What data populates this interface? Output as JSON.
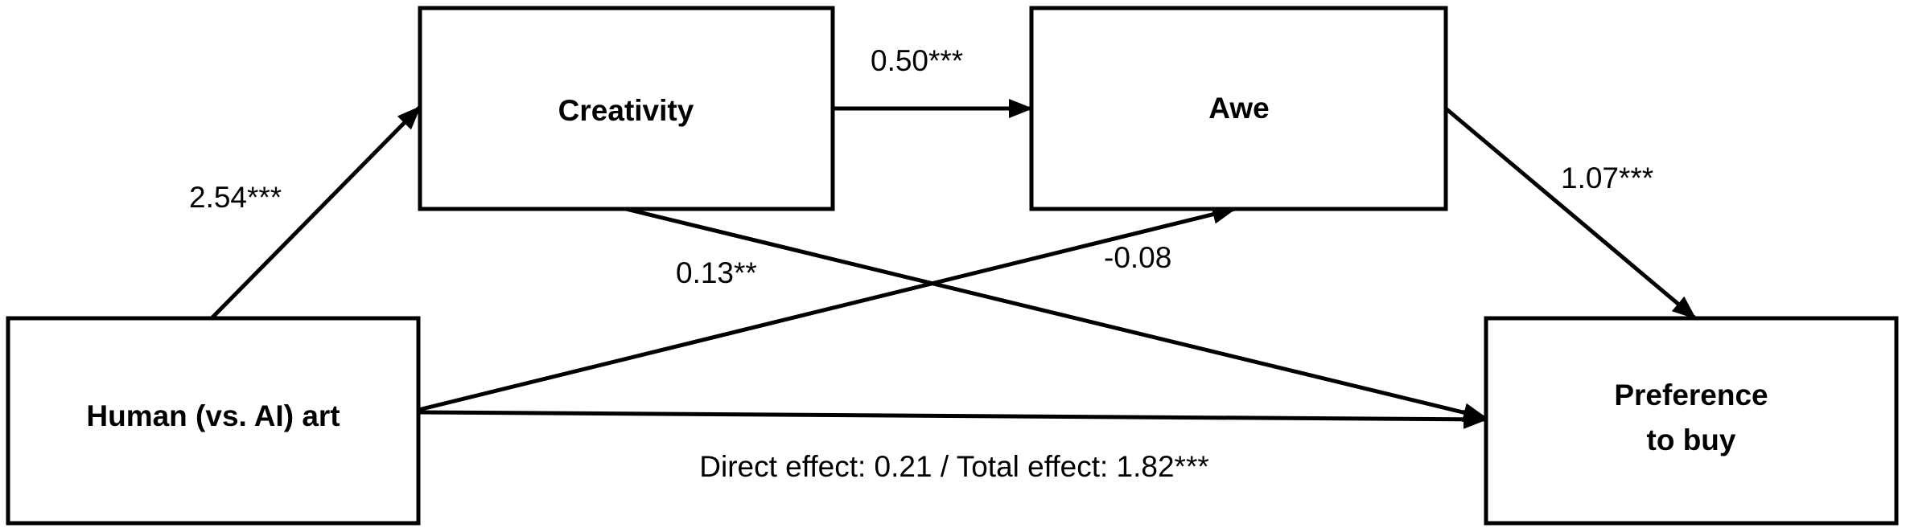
{
  "nodes": {
    "creativity": "Creativity",
    "awe": "Awe",
    "human_art": "Human (vs. AI) art",
    "preference_line1": "Preference",
    "preference_line2": "to buy"
  },
  "paths": {
    "human_to_creativity": "2.54***",
    "creativity_to_awe": "0.50***",
    "awe_to_preference": "1.07***",
    "creativity_to_preference": "0.13**",
    "human_to_awe": "-0.08",
    "direct_total": "Direct effect: 0.21 / Total effect: 1.82***"
  },
  "colors": {
    "stroke": "#000000",
    "background": "#ffffff"
  }
}
